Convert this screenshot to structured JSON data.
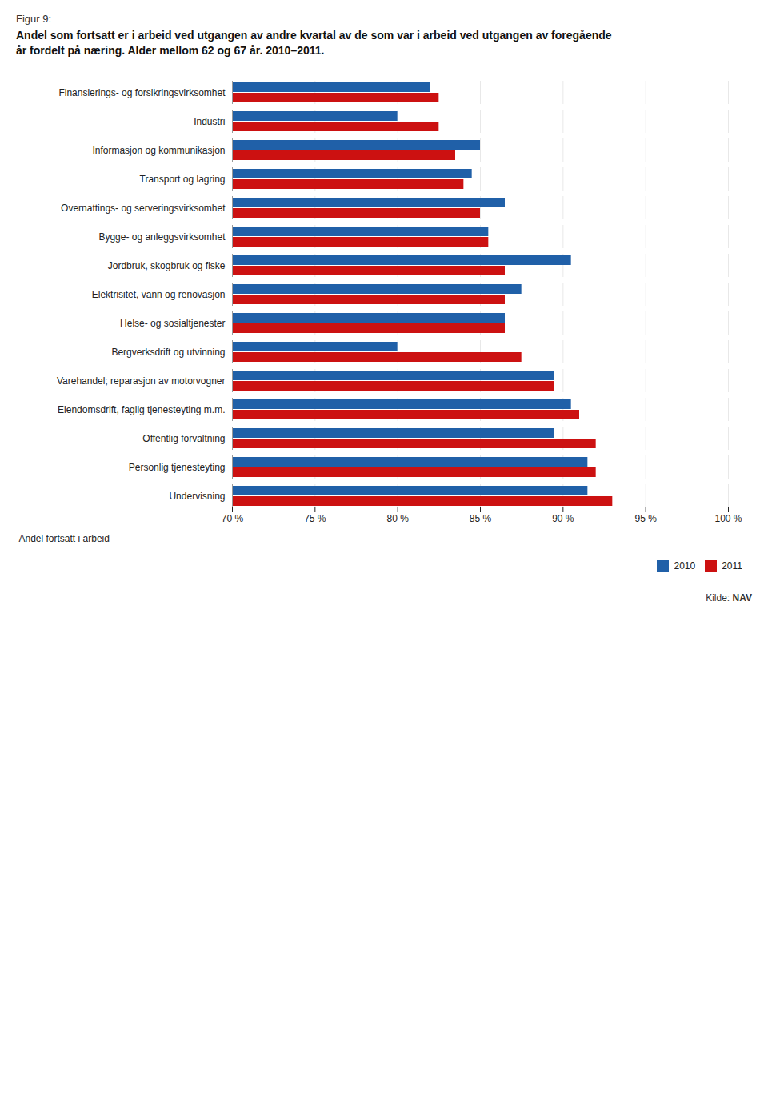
{
  "chart_data": {
    "type": "bar",
    "orientation": "horizontal",
    "title": "Figur 9:",
    "subtitle": "Andel som fortsatt er i arbeid ved utgangen av andre kvartal av de som var i arbeid ved utgangen av foregående\når fordelt på næring. Alder mellom 62 og 67 år. 2010–2011.",
    "categories": [
      "Finansierings- og forsikringsvirksomhet",
      "Industri",
      "Informasjon og kommunikasjon",
      "Transport og lagring",
      "Overnattings- og serveringsvirksomhet",
      "Bygge- og anleggsvirksomhet",
      "Jordbruk, skogbruk og fiske",
      "Elektrisitet, vann og renovasjon",
      "Helse- og sosialtjenester",
      "Bergverksdrift og utvinning",
      "Varehandel; reparasjon av motorvogner",
      "Eiendomsdrift, faglig tjenesteyting m.m.",
      "Offentlig forvaltning",
      "Personlig tjenesteyting",
      "Undervisning"
    ],
    "series": [
      {
        "name": "2010",
        "color": "#2060a8",
        "values": [
          82.0,
          80.0,
          85.0,
          84.5,
          86.5,
          85.5,
          90.5,
          87.5,
          86.5,
          80.0,
          89.5,
          90.5,
          89.5,
          91.5,
          91.5
        ]
      },
      {
        "name": "2011",
        "color": "#cc1111",
        "values": [
          82.5,
          82.5,
          83.5,
          84.0,
          85.0,
          85.5,
          86.5,
          86.5,
          86.5,
          87.5,
          89.5,
          91.0,
          92.0,
          92.0,
          93.0
        ]
      }
    ],
    "xlabel": "Andel fortsatt i arbeid",
    "xlim": [
      70,
      100
    ],
    "xticks": [
      {
        "value": 70,
        "label": "70 %"
      },
      {
        "value": 75,
        "label": "75 %"
      },
      {
        "value": 80,
        "label": "80 %"
      },
      {
        "value": 85,
        "label": "85 %"
      },
      {
        "value": 90,
        "label": "90 %"
      },
      {
        "value": 95,
        "label": "95 %"
      },
      {
        "value": 100,
        "label": "100 %"
      }
    ],
    "grid": true,
    "legend": "lower right",
    "annotations": [
      "Kilde: NAV"
    ]
  }
}
